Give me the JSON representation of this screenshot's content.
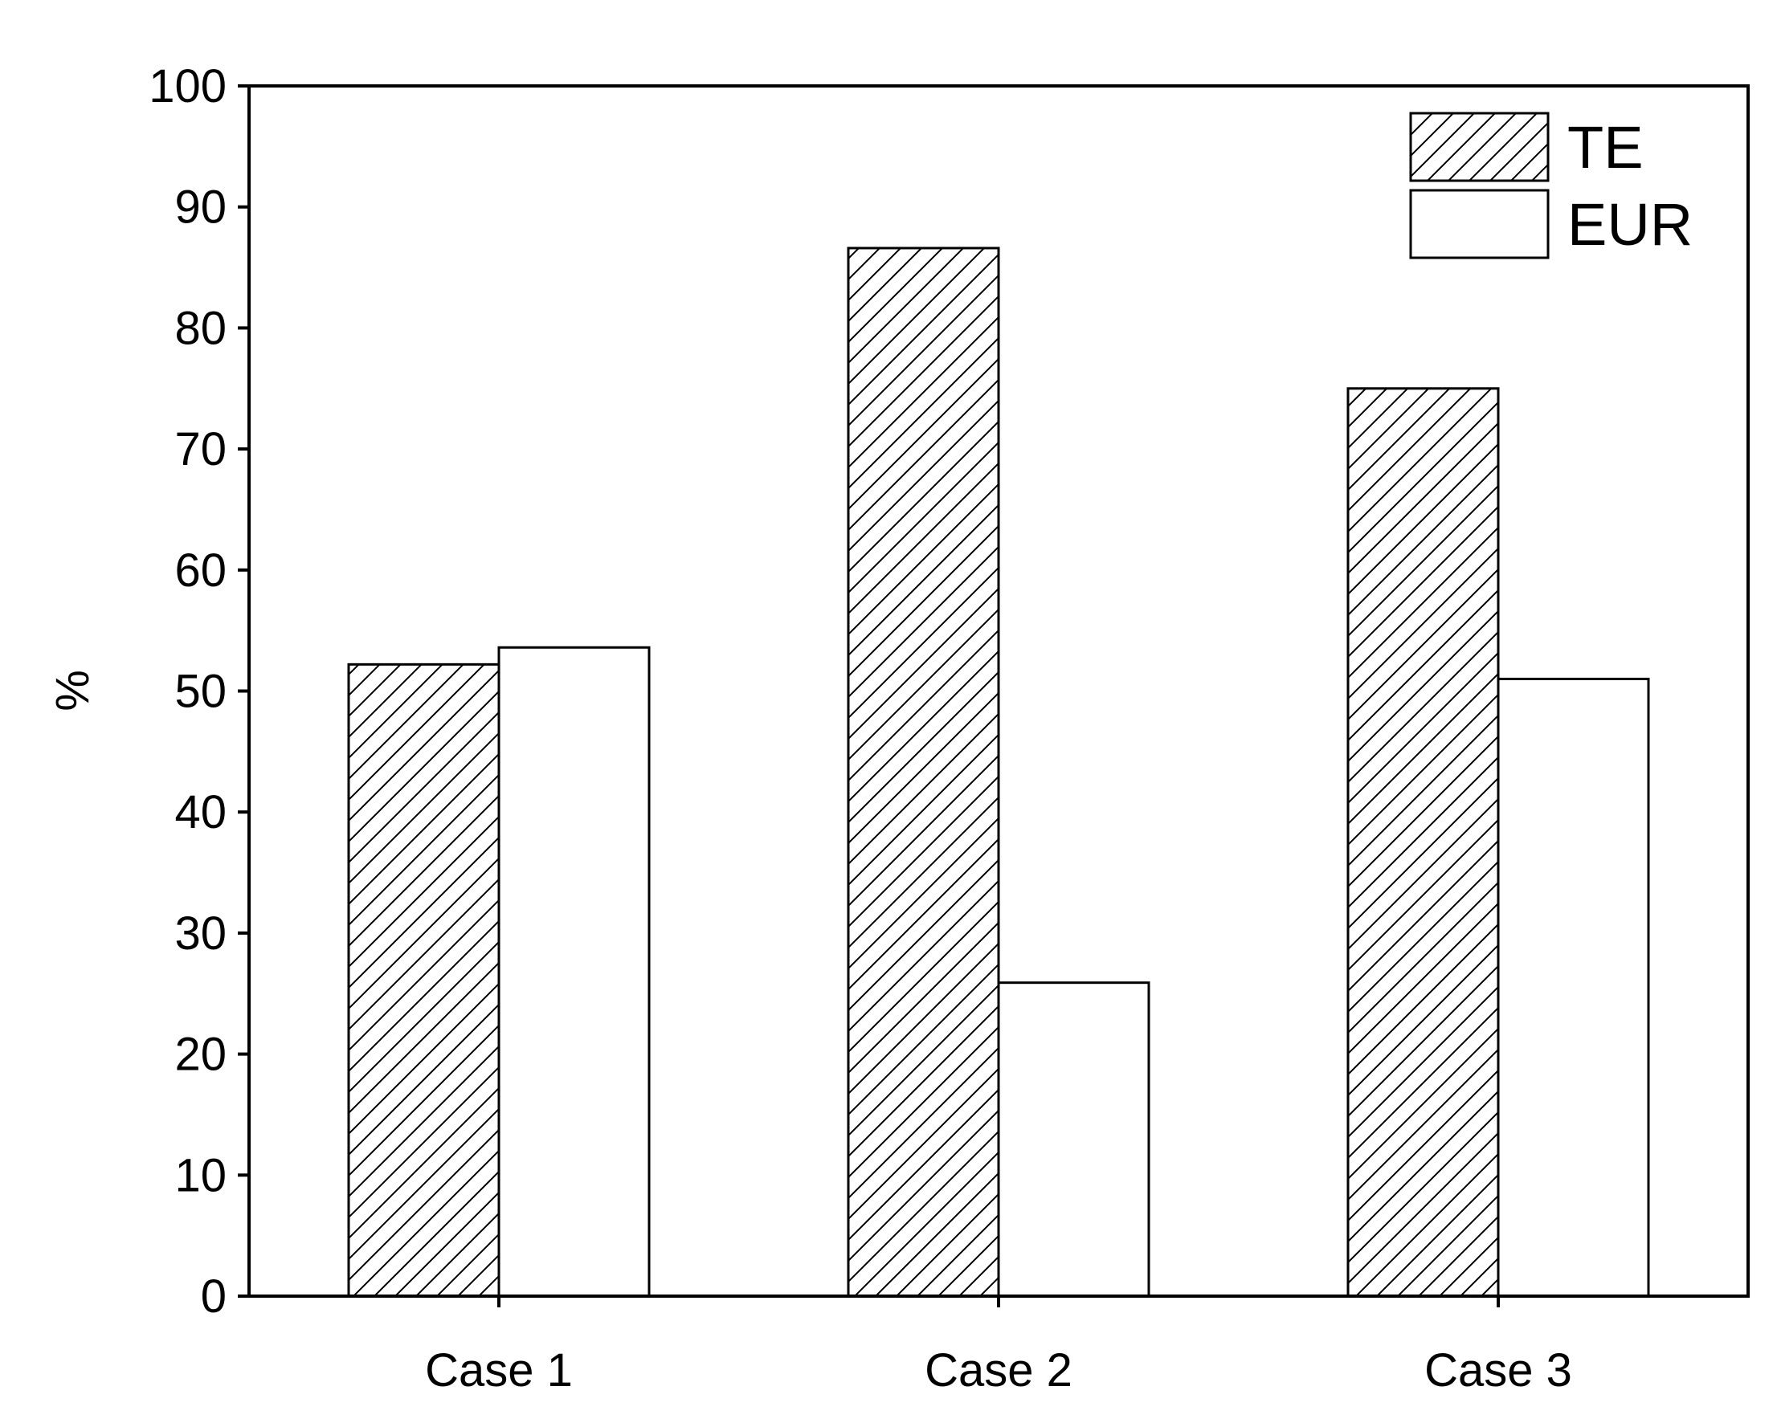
{
  "chart_data": {
    "type": "bar",
    "categories": [
      "Case 1",
      "Case 2",
      "Case 3"
    ],
    "series": [
      {
        "name": "TE",
        "values": [
          52.2,
          86.6,
          75.0
        ],
        "pattern": "hatched"
      },
      {
        "name": "EUR",
        "values": [
          53.6,
          25.9,
          51.0
        ],
        "pattern": "open"
      }
    ],
    "ylabel": "%",
    "xlabel": "",
    "ylim": [
      0,
      100
    ],
    "yticks": [
      0,
      10,
      20,
      30,
      40,
      50,
      60,
      70,
      80,
      90,
      100
    ],
    "grid": false,
    "legend": "top-right",
    "colors": {
      "stroke": "#000000",
      "fill": "#ffffff",
      "hatch": "#000000"
    }
  }
}
